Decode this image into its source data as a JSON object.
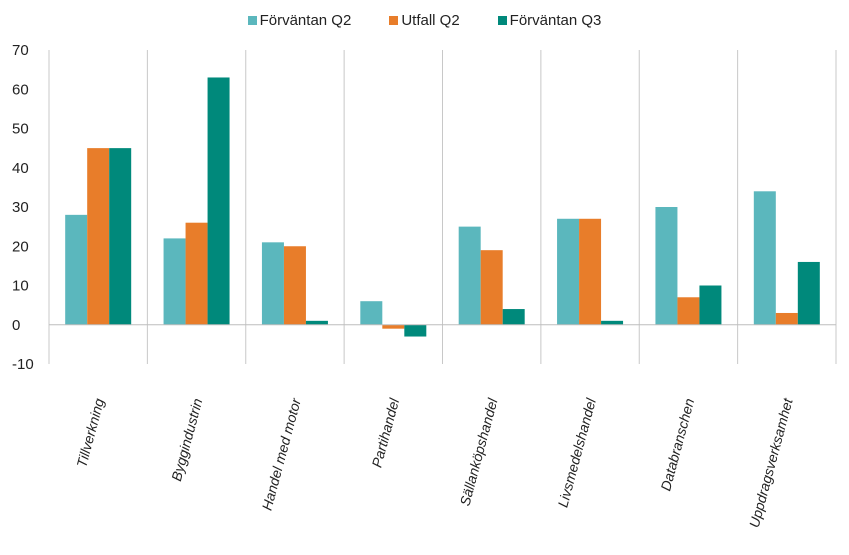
{
  "chart_data": {
    "type": "bar",
    "categories": [
      "Tillverkning",
      "Byggindustrin",
      "Handel med motor",
      "Partihandel",
      "Sällanköpshandel",
      "Livsmedelshandel",
      "Databranschen",
      "Uppdragsverksamhet"
    ],
    "series": [
      {
        "name": "Förväntan Q2",
        "color": "#5bb7bd",
        "values": [
          28,
          22,
          21,
          6,
          25,
          27,
          30,
          34
        ]
      },
      {
        "name": "Utfall Q2",
        "color": "#e87d2a",
        "values": [
          45,
          26,
          20,
          -1,
          19,
          27,
          7,
          3
        ]
      },
      {
        "name": "Förväntan Q3",
        "color": "#00897b",
        "values": [
          45,
          63,
          1,
          -3,
          4,
          1,
          10,
          16
        ]
      }
    ],
    "ylim": [
      -10,
      70
    ],
    "yticks": [
      "70",
      "60",
      "50",
      "40",
      "30",
      "20",
      "10",
      "0",
      "-10"
    ],
    "legend_position": "top-center",
    "grid": "vertical category separators"
  }
}
